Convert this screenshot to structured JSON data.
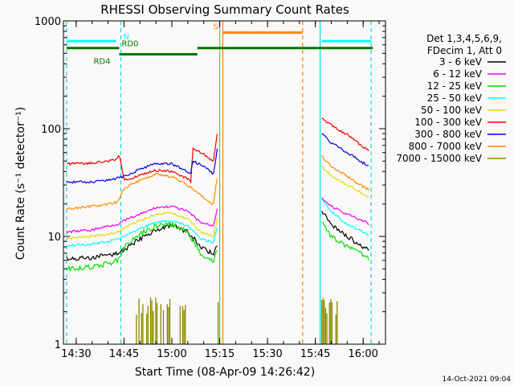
{
  "chart_data": {
    "type": "line",
    "title": "RHESSI Observing Summary Count Rates",
    "xlabel": "Start Time (08-Apr-09 14:26:42)",
    "ylabel": "Count Rate (s⁻¹ detector⁻¹)",
    "y_scale": "log",
    "ylim": [
      1,
      1000
    ],
    "xlim": [
      "14:26:42",
      "16:07:00"
    ],
    "x_ticks": [
      "14:30",
      "14:45",
      "15:00",
      "15:15",
      "15:30",
      "15:45",
      "16:00"
    ],
    "y_ticks": [
      "1",
      "10",
      "100",
      "1000"
    ],
    "legend_header": [
      "Det 1,3,4,5,6,9,",
      "FDecim 1, Att 0"
    ],
    "legend_position": "right",
    "timestamp": "14-Oct-2021 09:04",
    "colors": {
      "background": "#fbf9f7",
      "3-6": "#000000",
      "6-12": "#ee00ee",
      "12-25": "#00dd00",
      "25-50": "#00ffff",
      "50-100": "#dddd00",
      "100-300": "#ee0000",
      "300-800": "#0000dd",
      "800-7000": "#ff8800",
      "7000-15000": "#888800",
      "night": "#00dddd",
      "saa": "#ff8800",
      "decim": "#007700"
    },
    "series": [
      {
        "name": "3 - 6 keV",
        "color": "#000000",
        "segments": [
          {
            "t": [
              "14:27",
              "14:35",
              "14:40",
              "14:43",
              "14:45",
              "14:50",
              "14:55",
              "15:00",
              "15:05",
              "15:09",
              "15:13",
              "15:14.5"
            ],
            "v": [
              6.2,
              6.3,
              6.7,
              7.0,
              7.5,
              9.5,
              11.5,
              12.5,
              11.0,
              8.0,
              6.8,
              9.0
            ]
          },
          {
            "t": [
              "15:47",
              "15:50",
              "15:55",
              "16:00",
              "16:02"
            ],
            "v": [
              17,
              13,
              10,
              8,
              7.2
            ]
          }
        ]
      },
      {
        "name": "6 - 12 keV",
        "color": "#ee00ee",
        "segments": [
          {
            "t": [
              "14:27",
              "14:35",
              "14:40",
              "14:43",
              "14:45",
              "14:50",
              "14:55",
              "15:00",
              "15:05",
              "15:09",
              "15:13",
              "15:14.5"
            ],
            "v": [
              11,
              11.5,
              12.5,
              13,
              14,
              16,
              18.5,
              19,
              17,
              13.5,
              12.5,
              20
            ]
          },
          {
            "t": [
              "15:47",
              "15:50",
              "15:55",
              "16:00",
              "16:02"
            ],
            "v": [
              23,
              19,
              16,
              14,
              13
            ]
          }
        ]
      },
      {
        "name": "12 - 25 keV",
        "color": "#00dd00",
        "segments": [
          {
            "t": [
              "14:27",
              "14:35",
              "14:40",
              "14:43",
              "14:45",
              "14:50",
              "14:55",
              "15:00",
              "15:05",
              "15:09",
              "15:13",
              "15:14.5"
            ],
            "v": [
              5.0,
              5.2,
              5.6,
              6.0,
              8.0,
              10.5,
              12.5,
              13.0,
              11.0,
              7.0,
              5.8,
              8.0
            ]
          },
          {
            "t": [
              "15:47",
              "15:50",
              "15:55",
              "16:00",
              "16:02"
            ],
            "v": [
              14,
              10,
              8,
              6.8,
              6.0
            ]
          }
        ]
      },
      {
        "name": "25 - 50 keV",
        "color": "#00ffff",
        "segments": [
          {
            "t": [
              "14:27",
              "14:35",
              "14:40",
              "14:43",
              "14:45",
              "14:50",
              "14:55",
              "15:00",
              "15:05",
              "15:09",
              "15:13",
              "15:14.5"
            ],
            "v": [
              8.2,
              8.5,
              9.0,
              9.4,
              10.0,
              11.8,
              13.5,
              14.0,
              12.5,
              9.5,
              8.8,
              13
            ]
          },
          {
            "t": [
              "15:47",
              "15:50",
              "15:55",
              "16:00",
              "16:02"
            ],
            "v": [
              22,
              17,
              13,
              11,
              10
            ]
          }
        ]
      },
      {
        "name": "50 - 100 keV",
        "color": "#dddd00",
        "segments": [
          {
            "t": [
              "14:27",
              "14:35",
              "14:40",
              "14:43",
              "14:45",
              "14:50",
              "14:55",
              "15:00",
              "15:05",
              "15:09",
              "15:13",
              "15:14.5"
            ],
            "v": [
              9.5,
              10,
              10.5,
              11,
              12,
              14,
              16,
              16.5,
              14.5,
              11,
              10,
              16
            ]
          },
          {
            "t": [
              "15:47",
              "15:50",
              "15:55",
              "16:00",
              "16:02"
            ],
            "v": [
              45,
              36,
              30,
              25,
              23
            ]
          }
        ]
      },
      {
        "name": "100 - 300 keV",
        "color": "#ee0000",
        "segments": [
          {
            "t": [
              "14:27",
              "14:35",
              "14:40",
              "14:43",
              "14:43.5",
              "14:45",
              "14:50",
              "14:55",
              "15:00",
              "15:05",
              "15:06",
              "15:06.5",
              "15:10",
              "15:13",
              "15:14.5"
            ],
            "v": [
              47,
              48,
              50,
              52,
              58,
              33,
              37,
              41,
              40,
              34,
              32,
              66,
              58,
              50,
              100
            ]
          },
          {
            "t": [
              "15:47",
              "15:50",
              "15:55",
              "16:00",
              "16:02"
            ],
            "v": [
              125,
              108,
              88,
              68,
              62
            ]
          }
        ]
      },
      {
        "name": "300 - 800 keV",
        "color": "#0000dd",
        "segments": [
          {
            "t": [
              "14:27",
              "14:35",
              "14:40",
              "14:43",
              "14:45",
              "14:50",
              "14:55",
              "15:00",
              "15:05",
              "15:06",
              "15:06.5",
              "15:10",
              "15:13",
              "15:14.5"
            ],
            "v": [
              32,
              32,
              33,
              35,
              36,
              42,
              48,
              47,
              40,
              38,
              50,
              45,
              38,
              72
            ]
          },
          {
            "t": [
              "15:47",
              "15:50",
              "15:55",
              "16:00",
              "16:02"
            ],
            "v": [
              90,
              74,
              60,
              48,
              45
            ]
          }
        ]
      },
      {
        "name": "800 - 7000 keV",
        "color": "#ff8800",
        "segments": [
          {
            "t": [
              "14:27",
              "14:35",
              "14:40",
              "14:43",
              "14:45",
              "14:50",
              "14:55",
              "15:00",
              "15:05",
              "15:09",
              "15:13",
              "15:14.5"
            ],
            "v": [
              18,
              19,
              20,
              21,
              28,
              33,
              38,
              36,
              30,
              24,
              20,
              40
            ]
          },
          {
            "t": [
              "15:47",
              "15:50",
              "15:55",
              "16:00",
              "16:02"
            ],
            "v": [
              55,
              45,
              36,
              29,
              27
            ]
          }
        ]
      },
      {
        "name": "7000 - 15000 keV",
        "color": "#888800",
        "segments": [
          {
            "t": [
              "14:48.5",
              "15:05"
            ],
            "v": [
              2.2,
              2.2
            ]
          },
          {
            "t": [
              "15:14.5",
              "15:15"
            ],
            "v": [
              2.0,
              2.5
            ]
          },
          {
            "t": [
              "15:47",
              "15:52"
            ],
            "v": [
              2.2,
              2.2
            ]
          }
        ]
      }
    ],
    "flags": [
      {
        "label": "N",
        "color": "#00ffff",
        "level": 650,
        "ranges": [
          [
            "14:27",
            "14:42.5"
          ],
          [
            "15:47",
            "16:02.5"
          ]
        ]
      },
      {
        "label": "S",
        "color": "#ff8800",
        "level": 780,
        "ranges": [
          [
            "15:16",
            "15:41"
          ]
        ]
      },
      {
        "label": "RD0",
        "color": "#007700",
        "level": 560,
        "ranges": [
          [
            "14:27",
            "14:43.5"
          ],
          [
            "15:08",
            "16:03"
          ]
        ]
      },
      {
        "label": "RD4",
        "color": "#007700",
        "level": 490,
        "ranges": [
          [
            "14:43.5",
            "15:08"
          ]
        ]
      }
    ],
    "event_lines": [
      {
        "t": "14:27",
        "color": "#00dddd",
        "style": "dashed"
      },
      {
        "t": "14:44",
        "color": "#00dddd",
        "style": "dashed"
      },
      {
        "t": "15:15",
        "color": "#00dddd",
        "style": "solid"
      },
      {
        "t": "15:16",
        "color": "#ff8800",
        "style": "solid"
      },
      {
        "t": "15:41",
        "color": "#ff8800",
        "style": "dashed"
      },
      {
        "t": "15:46.5",
        "color": "#00dddd",
        "style": "solid"
      },
      {
        "t": "16:02.5",
        "color": "#00dddd",
        "style": "dashed"
      }
    ]
  }
}
